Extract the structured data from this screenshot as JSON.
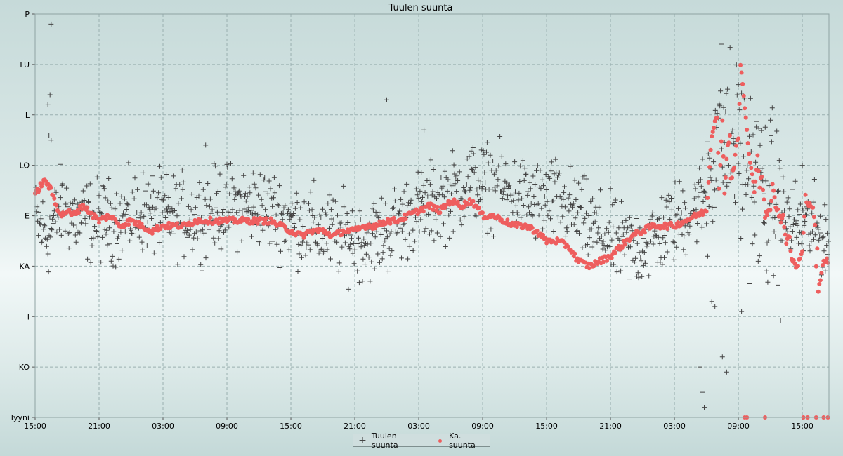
{
  "chart_data": {
    "type": "scatter",
    "title": "Tuulen suunta",
    "xlabel": "",
    "ylabel": "",
    "x_tick_labels": [
      "15:00",
      "21:00",
      "03:00",
      "09:00",
      "15:00",
      "21:00",
      "03:00",
      "09:00",
      "15:00",
      "21:00",
      "03:00",
      "09:00",
      "15:00"
    ],
    "x_range_hours": [
      0,
      74.5
    ],
    "y_tick_labels": [
      "P",
      "LU",
      "L",
      "LO",
      "E",
      "KA",
      "I",
      "KO",
      "Tyyni"
    ],
    "y_range": [
      0,
      8
    ],
    "grid": true,
    "legend_position": "bottom-center",
    "series": [
      {
        "name": "Tuulen suunta",
        "marker": "plus",
        "color": "#444444",
        "trend": [
          [
            0,
            3.9
          ],
          [
            1.2,
            3.6
          ],
          [
            2.5,
            4.2
          ],
          [
            4,
            3.9
          ],
          [
            6,
            3.9
          ],
          [
            8,
            3.9
          ],
          [
            10,
            4.1
          ],
          [
            12,
            4.0
          ],
          [
            15,
            4.0
          ],
          [
            18,
            4.2
          ],
          [
            21,
            4.2
          ],
          [
            24,
            3.9
          ],
          [
            27,
            3.7
          ],
          [
            29,
            3.6
          ],
          [
            31,
            3.5
          ],
          [
            33,
            3.7
          ],
          [
            35,
            4.0
          ],
          [
            37,
            4.2
          ],
          [
            39,
            4.4
          ],
          [
            41,
            4.7
          ],
          [
            43,
            4.6
          ],
          [
            45,
            4.4
          ],
          [
            47,
            4.3
          ],
          [
            49,
            4.3
          ],
          [
            51,
            4.0
          ],
          [
            52,
            3.8
          ],
          [
            55,
            3.4
          ],
          [
            57,
            3.4
          ],
          [
            59,
            3.7
          ],
          [
            61,
            4.0
          ],
          [
            62,
            4.2
          ],
          [
            63,
            4.5
          ],
          [
            64,
            5.7
          ],
          [
            66,
            5.3
          ],
          [
            68,
            4.5
          ],
          [
            70,
            4.0
          ],
          [
            72,
            3.8
          ],
          [
            74.5,
            3.6
          ]
        ],
        "noise": 0.4,
        "outliers": [
          [
            1.5,
            7.8
          ],
          [
            1.4,
            6.4
          ],
          [
            1.2,
            6.2
          ],
          [
            1.3,
            5.6
          ],
          [
            1.5,
            5.5
          ],
          [
            33,
            6.3
          ],
          [
            36.5,
            5.7
          ],
          [
            16,
            5.4
          ],
          [
            61,
            3.8
          ],
          [
            63.5,
            2.3
          ],
          [
            63.8,
            2.2
          ],
          [
            64.5,
            1.2
          ],
          [
            64.9,
            0.9
          ],
          [
            62.4,
            1.0
          ],
          [
            62.6,
            0.5
          ],
          [
            62.8,
            0.2
          ],
          [
            62.85,
            0.2
          ],
          [
            66,
            6.6
          ],
          [
            66.3,
            2.1
          ],
          [
            70,
            3.9
          ],
          [
            71.5,
            3.9
          ],
          [
            72,
            5.0
          ]
        ]
      },
      {
        "name": "Ka. suunta",
        "marker": "dot",
        "color": "#ee5e5e",
        "points": [
          [
            0,
            4.4
          ],
          [
            0.5,
            4.6
          ],
          [
            1,
            4.7
          ],
          [
            1.5,
            4.5
          ],
          [
            2,
            4.2
          ],
          [
            2.5,
            4.0
          ],
          [
            3,
            4.1
          ],
          [
            3.5,
            4.0
          ],
          [
            4,
            4.1
          ],
          [
            4.5,
            4.2
          ],
          [
            5,
            4.1
          ],
          [
            6,
            3.9
          ],
          [
            7,
            4.0
          ],
          [
            8,
            3.8
          ],
          [
            9,
            3.9
          ],
          [
            10,
            3.8
          ],
          [
            11,
            3.7
          ],
          [
            12,
            3.8
          ],
          [
            13,
            3.8
          ],
          [
            14,
            3.8
          ],
          [
            15,
            3.9
          ],
          [
            16,
            3.9
          ],
          [
            17,
            3.9
          ],
          [
            18,
            3.9
          ],
          [
            19,
            3.9
          ],
          [
            20,
            3.9
          ],
          [
            21,
            3.9
          ],
          [
            22,
            3.9
          ],
          [
            23,
            3.8
          ],
          [
            24,
            3.7
          ],
          [
            25,
            3.6
          ],
          [
            26,
            3.7
          ],
          [
            27,
            3.7
          ],
          [
            28,
            3.6
          ],
          [
            29,
            3.7
          ],
          [
            30,
            3.7
          ],
          [
            31,
            3.8
          ],
          [
            32,
            3.8
          ],
          [
            33,
            3.9
          ],
          [
            34,
            3.9
          ],
          [
            35,
            4.0
          ],
          [
            36,
            4.1
          ],
          [
            37,
            4.2
          ],
          [
            38,
            4.1
          ],
          [
            39,
            4.3
          ],
          [
            40,
            4.2
          ],
          [
            41,
            4.3
          ],
          [
            42,
            4.0
          ],
          [
            43,
            4.0
          ],
          [
            44,
            3.9
          ],
          [
            45,
            3.8
          ],
          [
            46,
            3.8
          ],
          [
            47,
            3.7
          ],
          [
            48,
            3.5
          ],
          [
            49,
            3.5
          ],
          [
            50,
            3.4
          ],
          [
            51,
            3.1
          ],
          [
            52,
            3.0
          ],
          [
            53,
            3.1
          ],
          [
            54,
            3.2
          ],
          [
            55,
            3.4
          ],
          [
            56,
            3.6
          ],
          [
            57,
            3.7
          ],
          [
            58,
            3.8
          ],
          [
            59,
            3.8
          ],
          [
            60,
            3.8
          ],
          [
            61,
            3.9
          ],
          [
            62,
            4.0
          ],
          [
            63,
            4.1
          ],
          [
            63.5,
            5.6
          ],
          [
            63.8,
            5.9
          ],
          [
            64,
            6.0
          ],
          [
            64.5,
            5.9
          ],
          [
            65,
            5.4
          ],
          [
            65.2,
            5.6
          ],
          [
            65.6,
            5.0
          ],
          [
            66,
            5.5
          ],
          [
            66.2,
            7.0
          ],
          [
            66.5,
            6.4
          ],
          [
            67,
            5.2
          ],
          [
            67.5,
            4.5
          ],
          [
            68,
            4.6
          ],
          [
            68.5,
            4.0
          ],
          [
            69,
            4.1
          ],
          [
            69.5,
            4.2
          ],
          [
            70,
            3.9
          ],
          [
            70.5,
            3.5
          ],
          [
            71,
            3.1
          ],
          [
            71.5,
            3.0
          ],
          [
            72,
            3.3
          ],
          [
            72.5,
            4.2
          ],
          [
            73,
            4.2
          ],
          [
            73.3,
            3.0
          ],
          [
            73.5,
            2.5
          ],
          [
            74,
            3.1
          ],
          [
            74.5,
            3.1
          ],
          [
            64.2,
            4.5
          ],
          [
            64.7,
            4.5
          ],
          [
            65.3,
            4.7
          ],
          [
            65.8,
            5.4
          ],
          [
            67.8,
            5.2
          ],
          [
            68.2,
            4.8
          ],
          [
            69.2,
            4.6
          ],
          [
            70.2,
            4.0
          ],
          [
            70.8,
            3.6
          ],
          [
            72.3,
            4.4
          ],
          [
            73.2,
            3.8
          ],
          [
            73.4,
            3.4
          ],
          [
            66.6,
            0.0
          ],
          [
            66.8,
            0.0
          ],
          [
            68.5,
            0.0
          ],
          [
            72.1,
            0.0
          ],
          [
            72.5,
            0.0
          ],
          [
            73.3,
            0.0
          ],
          [
            74,
            0.0
          ],
          [
            74.4,
            0.0
          ]
        ]
      }
    ]
  },
  "legend": {
    "item1": "Tuulen suunta",
    "item2": "Ka. suunta"
  }
}
